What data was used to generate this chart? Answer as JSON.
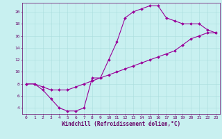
{
  "title": "",
  "xlabel": "Windchill (Refroidissement éolien,°C)",
  "bg_color": "#c8f0f0",
  "line_color": "#990099",
  "marker": "D",
  "markersize": 2,
  "linewidth": 0.8,
  "x_upper": [
    0,
    1,
    2,
    3,
    4,
    5,
    6,
    7,
    8,
    9,
    10,
    11,
    12,
    13,
    14,
    15,
    16,
    17,
    18,
    19,
    20,
    21,
    22,
    23
  ],
  "y_upper": [
    8,
    8,
    7,
    5.5,
    4,
    3.5,
    3.5,
    4,
    9,
    9,
    12,
    15,
    19,
    20,
    20.5,
    21,
    21,
    19,
    18.5,
    18,
    18,
    18,
    17,
    16.5
  ],
  "x_lower": [
    0,
    1,
    2,
    3,
    4,
    5,
    6,
    7,
    8,
    9,
    10,
    11,
    12,
    13,
    14,
    15,
    16,
    17,
    18,
    19,
    20,
    21,
    22,
    23
  ],
  "y_lower": [
    8,
    8,
    7.5,
    7,
    7,
    7,
    7.5,
    8,
    8.5,
    9,
    9.5,
    10,
    10.5,
    11,
    11.5,
    12,
    12.5,
    13,
    13.5,
    14.5,
    15.5,
    16,
    16.5,
    16.5
  ],
  "xlim": [
    -0.5,
    23.5
  ],
  "ylim": [
    3,
    21.5
  ],
  "yticks": [
    4,
    6,
    8,
    10,
    12,
    14,
    16,
    18,
    20
  ],
  "xticks": [
    0,
    1,
    2,
    3,
    4,
    5,
    6,
    7,
    8,
    9,
    10,
    11,
    12,
    13,
    14,
    15,
    16,
    17,
    18,
    19,
    20,
    21,
    22,
    23
  ],
  "grid_color": "#aadddd",
  "axis_color": "#660066",
  "tick_color": "#660066",
  "label_color": "#660066",
  "tick_fontsize": 4.5,
  "label_fontsize": 5.5,
  "font_family": "monospace"
}
